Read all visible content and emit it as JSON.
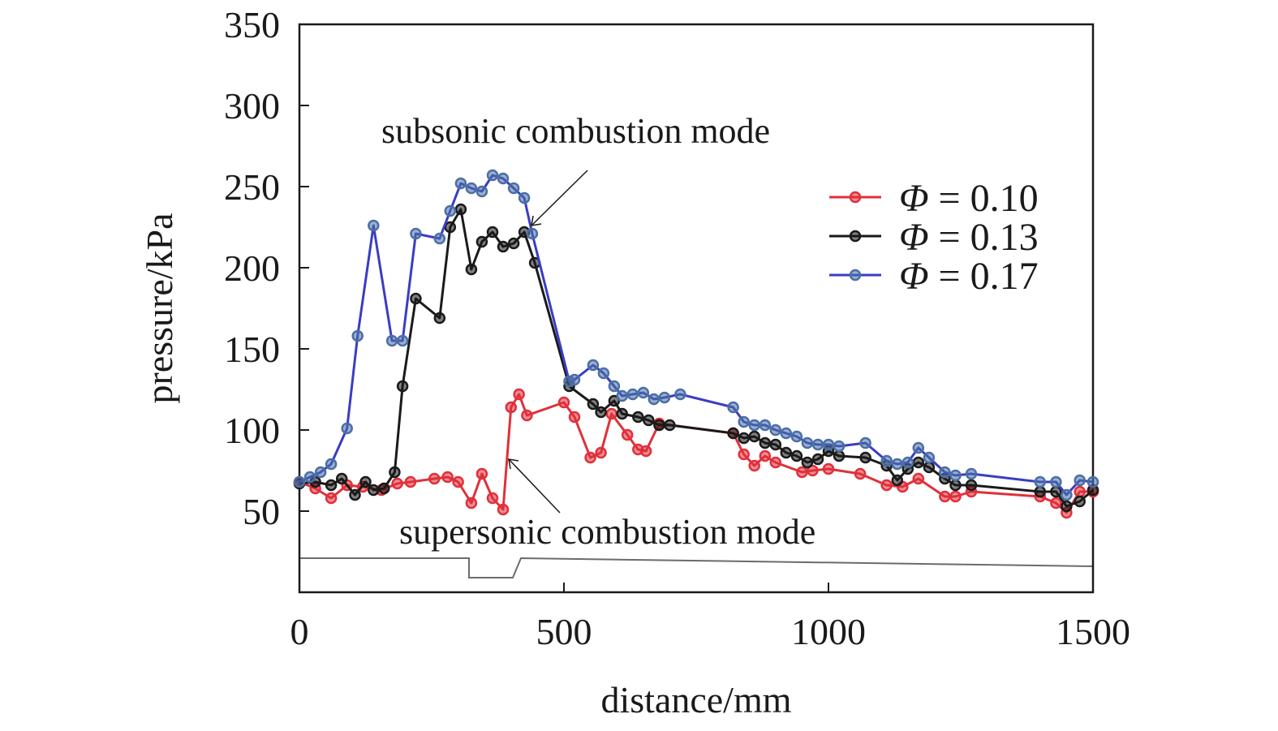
{
  "chart_data": {
    "type": "line",
    "xlabel": "distance/mm",
    "ylabel": "pressure/kPa",
    "xlim": [
      0,
      1500
    ],
    "ylim": [
      0,
      350
    ],
    "xticks": [
      0,
      500,
      1000,
      1500
    ],
    "yticks": [
      50,
      100,
      150,
      200,
      250,
      300,
      350
    ],
    "grid": false,
    "legend_position": "right",
    "annotations": [
      {
        "id": "subsonic",
        "text": "subsonic combustion mode",
        "target": [
          452,
          222
        ]
      },
      {
        "id": "supersonic",
        "text": "supersonic combustion mode",
        "target": [
          397,
          85
        ]
      }
    ],
    "series": [
      {
        "name": "Φ = 0.10",
        "symbol": "Φ",
        "value_text": " = 0.10",
        "color": "#e0303a",
        "x": [
          0,
          30,
          60,
          90,
          120,
          155,
          185,
          210,
          255,
          280,
          300,
          325,
          345,
          365,
          385,
          400,
          415,
          430,
          500,
          520,
          550,
          570,
          590,
          620,
          640,
          655,
          680,
          820,
          840,
          860,
          880,
          900,
          950,
          970,
          1000,
          1060,
          1110,
          1140,
          1170,
          1220,
          1240,
          1270,
          1400,
          1430,
          1450,
          1475,
          1500
        ],
        "y": [
          68,
          64,
          58,
          66,
          65,
          63,
          67,
          68,
          70,
          71,
          68,
          55,
          73,
          58,
          51,
          114,
          122,
          109,
          117,
          108,
          83,
          86,
          110,
          97,
          88,
          87,
          104,
          98,
          85,
          78,
          84,
          80,
          74,
          75,
          76,
          73,
          66,
          65,
          70,
          59,
          59,
          62,
          59,
          55,
          49,
          62,
          62
        ]
      },
      {
        "name": "Φ = 0.13",
        "symbol": "Φ",
        "value_text": " = 0.13",
        "color": "#1a1a1a",
        "x": [
          0,
          30,
          60,
          80,
          105,
          125,
          140,
          160,
          180,
          195,
          220,
          265,
          285,
          305,
          325,
          345,
          365,
          385,
          405,
          425,
          445,
          510,
          555,
          570,
          595,
          610,
          640,
          660,
          680,
          700,
          820,
          840,
          860,
          880,
          900,
          920,
          940,
          960,
          980,
          1000,
          1020,
          1070,
          1110,
          1130,
          1150,
          1170,
          1190,
          1220,
          1240,
          1270,
          1400,
          1430,
          1450,
          1475,
          1500
        ],
        "y": [
          67,
          68,
          66,
          70,
          60,
          68,
          63,
          64,
          74,
          127,
          181,
          169,
          225,
          236,
          199,
          216,
          222,
          213,
          215,
          222,
          203,
          127,
          116,
          111,
          118,
          110,
          108,
          106,
          103,
          103,
          98,
          95,
          96,
          92,
          91,
          86,
          84,
          80,
          82,
          87,
          84,
          83,
          78,
          69,
          76,
          80,
          77,
          70,
          66,
          66,
          62,
          62,
          53,
          56,
          63
        ]
      },
      {
        "name": "Φ = 0.17",
        "symbol": "Φ",
        "value_text": " = 0.17",
        "color": "#4a6fa5",
        "lineColor": "#3a3dc2",
        "x": [
          0,
          20,
          40,
          60,
          90,
          110,
          140,
          175,
          195,
          220,
          265,
          285,
          305,
          325,
          345,
          365,
          385,
          405,
          425,
          440,
          510,
          520,
          555,
          575,
          595,
          610,
          630,
          650,
          670,
          690,
          720,
          820,
          840,
          860,
          880,
          900,
          920,
          940,
          960,
          980,
          1000,
          1020,
          1070,
          1110,
          1130,
          1150,
          1170,
          1190,
          1220,
          1240,
          1270,
          1400,
          1430,
          1450,
          1475,
          1500
        ],
        "y": [
          68,
          71,
          74,
          79,
          101,
          158,
          226,
          155,
          155,
          221,
          218,
          235,
          252,
          249,
          247,
          257,
          255,
          249,
          243,
          221,
          130,
          131,
          140,
          135,
          127,
          121,
          122,
          123,
          119,
          120,
          122,
          114,
          105,
          103,
          103,
          100,
          98,
          96,
          92,
          91,
          91,
          90,
          92,
          81,
          79,
          80,
          89,
          83,
          74,
          72,
          73,
          68,
          68,
          60,
          69,
          68
        ]
      }
    ]
  }
}
